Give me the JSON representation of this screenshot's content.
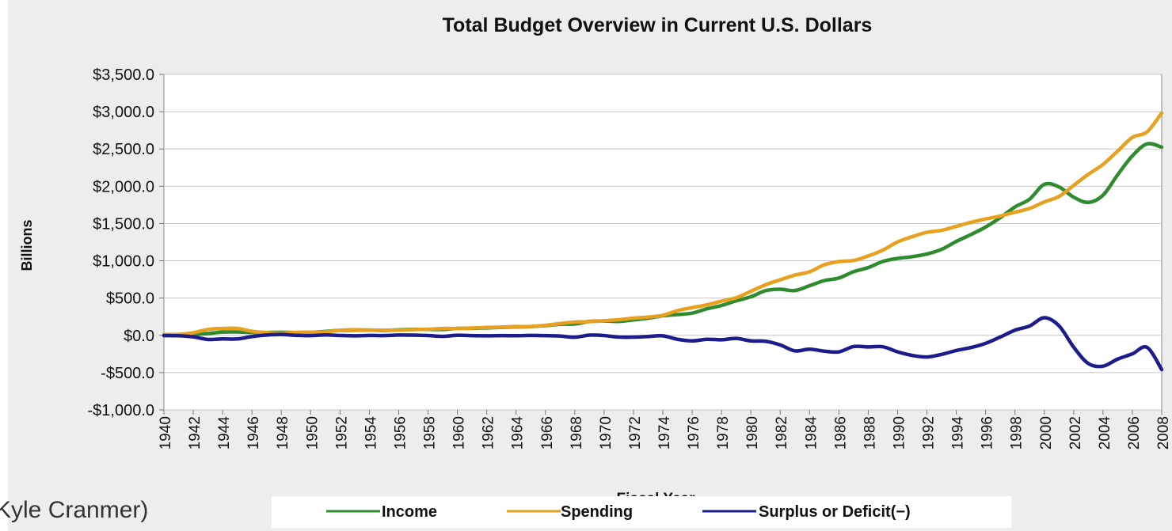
{
  "page": {
    "caption": "Kyle Cranmer)"
  },
  "chart_data": {
    "type": "line",
    "title": "Total Budget Overview in Current U.S. Dollars",
    "xlabel": "Fiscal Year",
    "ylabel": "Billions",
    "ylim": [
      -1000,
      3500
    ],
    "yticks": [
      -1000,
      -500,
      0,
      500,
      1000,
      1500,
      2000,
      2500,
      3000,
      3500
    ],
    "ytick_labels": [
      "-$1,000.0",
      "-$500.0",
      "$0.0",
      "$500.0",
      "$1,000.0",
      "$1,500.0",
      "$2,000.0",
      "$2,500.0",
      "$3,000.0",
      "$3,500.0"
    ],
    "xlim": [
      1940,
      2008
    ],
    "xticks": [
      1940,
      1942,
      1944,
      1946,
      1948,
      1950,
      1952,
      1954,
      1956,
      1958,
      1960,
      1962,
      1964,
      1966,
      1968,
      1970,
      1972,
      1974,
      1976,
      1978,
      1980,
      1982,
      1984,
      1986,
      1988,
      1990,
      1992,
      1994,
      1996,
      1998,
      2000,
      2002,
      2004,
      2006,
      2008
    ],
    "xtick_labels": [
      "1940",
      "1942",
      "1944",
      "1946",
      "1948",
      "1950",
      "1952",
      "1954",
      "1956",
      "1958",
      "1960",
      "1962",
      "1964",
      "1966",
      "1968",
      "1970",
      "1972",
      "1974",
      "1976",
      "1978",
      "1980",
      "1982",
      "1984",
      "1986",
      "1988",
      "1990",
      "1992",
      "1994",
      "1996",
      "1998",
      "2000",
      "2002",
      "2004",
      "2006",
      "2008"
    ],
    "grid": "horizontal",
    "legend_position": "bottom",
    "x": [
      1940,
      1941,
      1942,
      1943,
      1944,
      1945,
      1946,
      1947,
      1948,
      1949,
      1950,
      1951,
      1952,
      1953,
      1954,
      1955,
      1956,
      1957,
      1958,
      1959,
      1960,
      1961,
      1962,
      1963,
      1964,
      1965,
      1966,
      1967,
      1968,
      1969,
      1970,
      1971,
      1972,
      1973,
      1974,
      1975,
      1976,
      1977,
      1978,
      1979,
      1980,
      1981,
      1982,
      1983,
      1984,
      1985,
      1986,
      1987,
      1988,
      1989,
      1990,
      1991,
      1992,
      1993,
      1994,
      1995,
      1996,
      1997,
      1998,
      1999,
      2000,
      2001,
      2002,
      2003,
      2004,
      2005,
      2006,
      2007,
      2008
    ],
    "series": [
      {
        "name": "Income",
        "color": "#2e8b2e",
        "values": [
          7,
          9,
          15,
          24,
          44,
          45,
          39,
          39,
          42,
          39,
          39,
          52,
          66,
          70,
          70,
          65,
          75,
          80,
          80,
          79,
          93,
          94,
          100,
          107,
          113,
          117,
          131,
          149,
          153,
          187,
          193,
          187,
          207,
          231,
          263,
          279,
          298,
          356,
          400,
          463,
          517,
          599,
          618,
          601,
          666,
          734,
          769,
          854,
          909,
          991,
          1032,
          1055,
          1091,
          1154,
          1259,
          1352,
          1453,
          1579,
          1722,
          1827,
          2025,
          1991,
          1853,
          1783,
          1880,
          2154,
          2407,
          2568,
          2524
        ]
      },
      {
        "name": "Spending",
        "color": "#e8a020",
        "values": [
          10,
          14,
          35,
          79,
          91,
          93,
          55,
          35,
          30,
          39,
          43,
          46,
          68,
          76,
          71,
          68,
          71,
          77,
          82,
          92,
          92,
          98,
          106,
          111,
          118,
          118,
          135,
          158,
          178,
          184,
          196,
          210,
          231,
          246,
          269,
          332,
          372,
          409,
          459,
          504,
          591,
          678,
          746,
          808,
          852,
          946,
          990,
          1004,
          1065,
          1144,
          1253,
          1324,
          1382,
          1409,
          1462,
          1516,
          1561,
          1601,
          1652,
          1702,
          1789,
          1863,
          2011,
          2160,
          2293,
          2472,
          2655,
          2729,
          2983
        ]
      },
      {
        "name": "Surplus or Deficit(−)",
        "color": "#1c1c8c",
        "values": [
          -3,
          -5,
          -20,
          -55,
          -47,
          -48,
          -16,
          4,
          12,
          0,
          -4,
          6,
          -2,
          -6,
          -1,
          -3,
          4,
          3,
          -2,
          -13,
          1,
          -4,
          -6,
          -4,
          -5,
          -1,
          -4,
          -9,
          -25,
          3,
          -3,
          -23,
          -24,
          -15,
          -6,
          -53,
          -74,
          -53,
          -59,
          -41,
          -74,
          -79,
          -128,
          -208,
          -185,
          -212,
          -221,
          -150,
          -155,
          -153,
          -221,
          -269,
          -290,
          -255,
          -203,
          -164,
          -107,
          -22,
          69,
          126,
          236,
          128,
          -158,
          -378,
          -413,
          -318,
          -248,
          -161,
          -459
        ]
      }
    ]
  }
}
